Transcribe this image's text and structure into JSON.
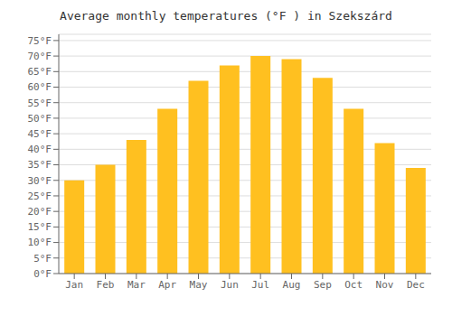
{
  "chart_data": {
    "type": "bar",
    "title": "Average monthly temperatures (°F ) in Szekszárd",
    "categories": [
      "Jan",
      "Feb",
      "Mar",
      "Apr",
      "May",
      "Jun",
      "Jul",
      "Aug",
      "Sep",
      "Oct",
      "Nov",
      "Dec"
    ],
    "values": [
      30,
      35,
      43,
      53,
      62,
      67,
      70,
      69,
      63,
      53,
      42,
      34
    ],
    "color": "#FFC020",
    "ylim": [
      0,
      77
    ],
    "yticks": [
      {
        "value": 0,
        "label": "0°F"
      },
      {
        "value": 5,
        "label": "5°F"
      },
      {
        "value": 10,
        "label": "10°F"
      },
      {
        "value": 15,
        "label": "15°F"
      },
      {
        "value": 20,
        "label": "20°F"
      },
      {
        "value": 25,
        "label": "25°F"
      },
      {
        "value": 30,
        "label": "30°F"
      },
      {
        "value": 35,
        "label": "35°F"
      },
      {
        "value": 40,
        "label": "40°F"
      },
      {
        "value": 45,
        "label": "45°F"
      },
      {
        "value": 50,
        "label": "50°F"
      },
      {
        "value": 55,
        "label": "55°F"
      },
      {
        "value": 60,
        "label": "60°F"
      },
      {
        "value": 65,
        "label": "65°F"
      },
      {
        "value": 70,
        "label": "70°F"
      },
      {
        "value": 75,
        "label": "75°F"
      }
    ],
    "grid": true
  }
}
